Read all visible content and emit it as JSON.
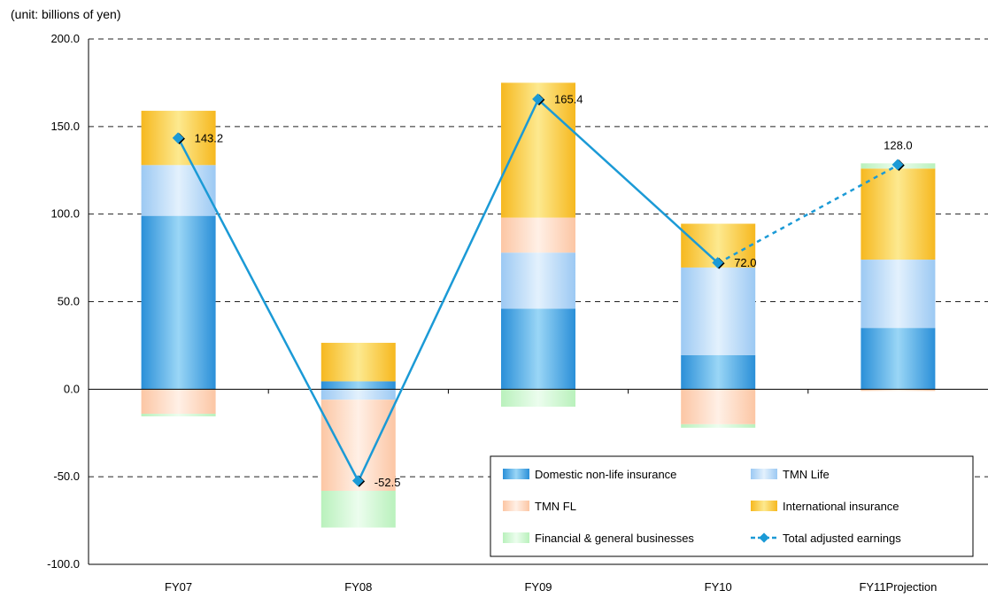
{
  "chart_data": {
    "type": "bar",
    "unit_label": "(unit: billions of yen)",
    "categories": [
      "FY07",
      "FY08",
      "FY09",
      "FY10",
      "FY11Projection"
    ],
    "ylim": [
      -100,
      200
    ],
    "yticks": [
      "200.0",
      "150.0",
      "100.0",
      "50.0",
      "0.0",
      "-50.0",
      "-100.0"
    ],
    "grid": "dashed horizontal",
    "legend_position": "bottom-right",
    "stacked": true,
    "series": [
      {
        "name": "Domestic non-life insurance",
        "values": [
          99,
          4.5,
          46,
          19.5,
          35
        ],
        "color": "#3aa2e2"
      },
      {
        "name": "TMN Life",
        "values": [
          29,
          -6,
          32,
          50,
          39
        ],
        "color": "#a9d2f7"
      },
      {
        "name": "TMN FL",
        "values": [
          -14,
          -52,
          20,
          -20,
          -1
        ],
        "color": "#fdd2b6"
      },
      {
        "name": "International insurance",
        "values": [
          31,
          22,
          77,
          25,
          52
        ],
        "color": "#f8c73a"
      },
      {
        "name": "Financial & general businesses",
        "values": [
          -1.5,
          -21,
          -10,
          -2,
          3
        ],
        "color": "#c9f5cb"
      }
    ],
    "line": {
      "name": "Total adjusted earnings",
      "values": [
        143.2,
        -52.5,
        165.4,
        72.0,
        128.0
      ],
      "labels": [
        "143.2",
        "-52.5",
        "165.4",
        "72.0",
        "128.0"
      ],
      "color": "#1b9ad6",
      "dashed_from_index": 3
    }
  }
}
